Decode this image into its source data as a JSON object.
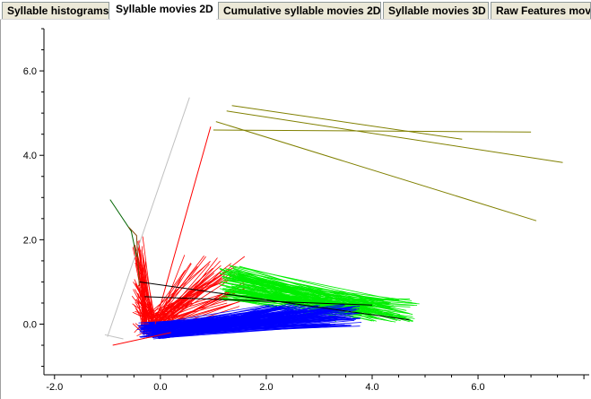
{
  "tabs": [
    {
      "label": "Syllable histograms",
      "active": false
    },
    {
      "label": "Syllable movies 2D",
      "active": true
    },
    {
      "label": "Cumulative syllable movies 2D",
      "active": false
    },
    {
      "label": "Syllable movies 3D",
      "active": false
    },
    {
      "label": "Raw Features mov",
      "active": false
    }
  ],
  "chart_data": {
    "type": "line",
    "title": "",
    "xlabel": "",
    "ylabel": "",
    "xlim": [
      -2.2,
      8.1
    ],
    "ylim": [
      -1.2,
      7.0
    ],
    "x_ticks": [
      -2.0,
      0.0,
      2.0,
      4.0,
      6.0
    ],
    "x_tick_labels": [
      "-2.0",
      "0.0",
      "2.0",
      "4.0",
      "6.0"
    ],
    "y_ticks": [
      0.0,
      2.0,
      4.0,
      6.0
    ],
    "y_tick_labels": [
      "0.0",
      "2.0",
      "4.0",
      "6.0"
    ],
    "grid": false,
    "legend": "none",
    "colors": {
      "red": "#ff0000",
      "green": "#00ee00",
      "blue": "#0000ff",
      "olive": "#808000",
      "black": "#000000",
      "gray": "#c0c0c0",
      "darkgreen": "#006400",
      "brown": "#804000"
    },
    "series": [
      {
        "color": "olive",
        "x": [
          1.0,
          7.0
        ],
        "y": [
          4.6,
          4.55
        ]
      },
      {
        "color": "olive",
        "x": [
          1.35,
          5.7
        ],
        "y": [
          5.18,
          4.38
        ]
      },
      {
        "color": "olive",
        "x": [
          1.25,
          7.6
        ],
        "y": [
          5.05,
          3.83
        ]
      },
      {
        "color": "olive",
        "x": [
          1.05,
          7.1
        ],
        "y": [
          4.8,
          2.45
        ]
      },
      {
        "color": "gray",
        "x": [
          -1.0,
          0.55
        ],
        "y": [
          -0.3,
          5.37
        ]
      },
      {
        "color": "gray",
        "x": [
          -1.05,
          -0.7
        ],
        "y": [
          -0.25,
          -0.35
        ]
      },
      {
        "color": "red",
        "x": [
          -0.1,
          0.95
        ],
        "y": [
          0.0,
          4.68
        ]
      },
      {
        "color": "red",
        "x": [
          -0.9,
          0.2
        ],
        "y": [
          -0.5,
          -0.2
        ]
      },
      {
        "color": "black",
        "x": [
          -0.4,
          4.7
        ],
        "y": [
          1.0,
          0.1
        ]
      },
      {
        "color": "black",
        "x": [
          -0.3,
          4.0
        ],
        "y": [
          0.65,
          0.45
        ]
      },
      {
        "color": "darkgreen",
        "x": [
          -0.95,
          -0.55,
          -0.45
        ],
        "y": [
          2.95,
          2.2,
          1.6
        ]
      },
      {
        "color": "brown",
        "x": [
          -0.6,
          -0.45,
          -0.4
        ],
        "y": [
          2.3,
          2.1,
          0.9
        ]
      }
    ],
    "bundles": [
      {
        "color": "red",
        "count": 70,
        "from": {
          "x": [
            -0.55,
            -0.25
          ],
          "y": [
            -0.3,
            2.1
          ]
        },
        "to": {
          "x": [
            -0.35,
            -0.05
          ],
          "y": [
            -0.3,
            0.2
          ]
        }
      },
      {
        "color": "red",
        "count": 60,
        "from": {
          "x": [
            -0.3,
            0.0
          ],
          "y": [
            -0.25,
            0.25
          ]
        },
        "to": {
          "x": [
            0.4,
            1.7
          ],
          "y": [
            0.4,
            1.65
          ]
        }
      },
      {
        "color": "green",
        "count": 110,
        "from": {
          "x": [
            1.1,
            1.5
          ],
          "y": [
            0.55,
            1.4
          ]
        },
        "to": {
          "x": [
            3.2,
            4.9
          ],
          "y": [
            0.05,
            0.6
          ]
        }
      },
      {
        "color": "blue",
        "count": 150,
        "from": {
          "x": [
            -0.45,
            0.2
          ],
          "y": [
            -0.35,
            0.05
          ]
        },
        "to": {
          "x": [
            2.0,
            3.8
          ],
          "y": [
            -0.05,
            0.5
          ]
        }
      }
    ]
  }
}
